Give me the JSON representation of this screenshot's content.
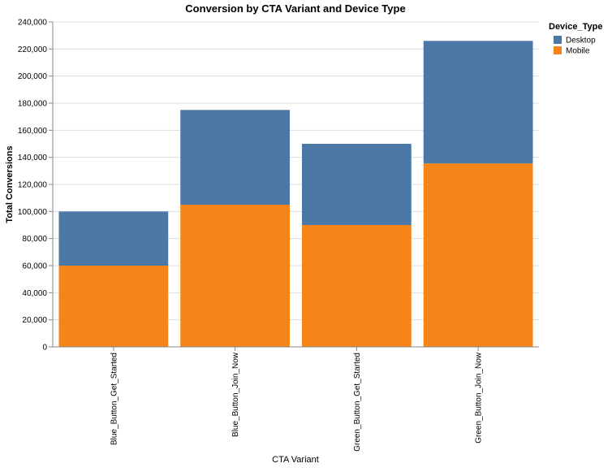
{
  "chart_data": {
    "type": "bar",
    "stacked": true,
    "title": "Conversion by CTA Variant and Device Type",
    "xlabel": "CTA Variant",
    "ylabel": "Total Conversions",
    "ylim": [
      0,
      240000
    ],
    "yticks": [
      "0",
      "20,000",
      "40,000",
      "60,000",
      "80,000",
      "100,000",
      "120,000",
      "140,000",
      "160,000",
      "180,000",
      "200,000",
      "220,000",
      "240,000"
    ],
    "ytick_values": [
      0,
      20000,
      40000,
      60000,
      80000,
      100000,
      120000,
      140000,
      160000,
      180000,
      200000,
      220000,
      240000
    ],
    "categories": [
      "Blue_Button_Get_Started",
      "Blue_Button_Join_Now",
      "Green_Button_Get_Started",
      "Green_Button_Join_Now"
    ],
    "series": [
      {
        "name": "Mobile",
        "color": "#f58518",
        "values": [
          60000,
          105000,
          90000,
          135500
        ]
      },
      {
        "name": "Desktop",
        "color": "#4c78a8",
        "values": [
          40000,
          70000,
          60000,
          90500
        ]
      }
    ],
    "legend": {
      "title": "Device_Type",
      "entries": [
        "Desktop",
        "Mobile"
      ],
      "colors": [
        "#4c78a8",
        "#f58518"
      ],
      "placement": "top-right"
    },
    "grid": true
  }
}
